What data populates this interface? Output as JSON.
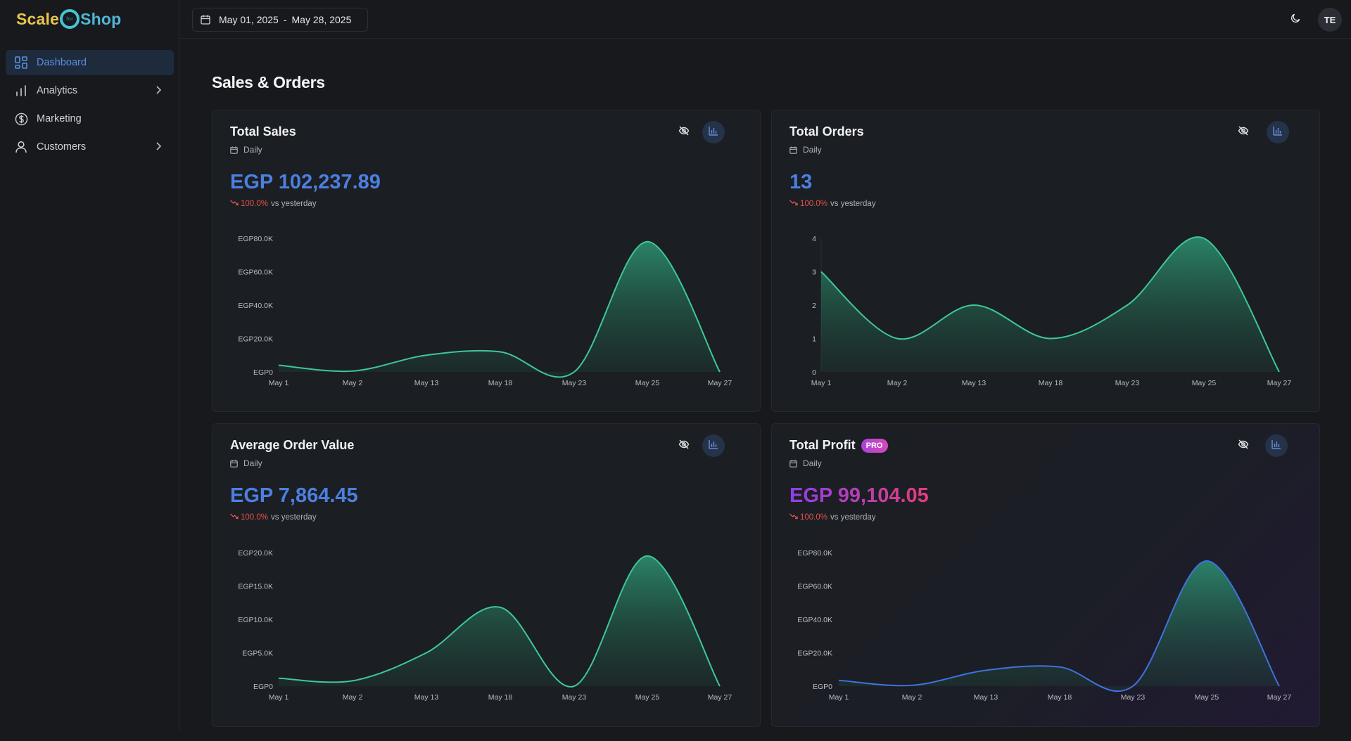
{
  "brand": {
    "part1": "Scale",
    "ring": "for",
    "part2": "Shop"
  },
  "sidebar": {
    "items": [
      {
        "label": "Dashboard",
        "icon": "dashboard-icon",
        "active": true,
        "chevron": false
      },
      {
        "label": "Analytics",
        "icon": "bar-chart-icon",
        "active": false,
        "chevron": true
      },
      {
        "label": "Marketing",
        "icon": "dollar-circle-icon",
        "active": false,
        "chevron": false
      },
      {
        "label": "Customers",
        "icon": "user-icon",
        "active": false,
        "chevron": true
      }
    ]
  },
  "topbar": {
    "date_from": "May 01, 2025",
    "date_sep": "-",
    "date_to": "May 28, 2025",
    "avatar": "TE"
  },
  "main": {
    "section_title": "Sales & Orders"
  },
  "cards": [
    {
      "title": "Total Sales",
      "period": "Daily",
      "value": "EGP 102,237.89",
      "change": "100.0%",
      "compare": "vs yesterday",
      "pro": false
    },
    {
      "title": "Total Orders",
      "period": "Daily",
      "value": "13",
      "change": "100.0%",
      "compare": "vs yesterday",
      "pro": false
    },
    {
      "title": "Average Order Value",
      "period": "Daily",
      "value": "EGP 7,864.45",
      "change": "100.0%",
      "compare": "vs yesterday",
      "pro": false
    },
    {
      "title": "Total Profit",
      "badge": "PRO",
      "period": "Daily",
      "value": "EGP 99,104.05",
      "change": "100.0%",
      "compare": "vs yesterday",
      "pro": true
    }
  ],
  "colors": {
    "accent": "#4c7fe0",
    "line_green": "#3ec79a",
    "line_blue": "#3d73e0",
    "negative": "#e45050"
  },
  "chart_data": [
    {
      "type": "area",
      "title": "Total Sales",
      "categories": [
        "May 1",
        "May 2",
        "May 13",
        "May 18",
        "May 23",
        "May 25",
        "May 27"
      ],
      "values": [
        4000,
        500,
        10000,
        12000,
        0,
        78000,
        0
      ],
      "ylim": [
        0,
        80000
      ],
      "yticks": [
        0,
        20000,
        40000,
        60000,
        80000
      ],
      "ytick_labels": [
        "EGP0",
        "EGP20.0K",
        "EGP40.0K",
        "EGP60.0K",
        "EGP80.0K"
      ],
      "color": "#3ec79a"
    },
    {
      "type": "area",
      "title": "Total Orders",
      "categories": [
        "May 1",
        "May 2",
        "May 13",
        "May 18",
        "May 23",
        "May 25",
        "May 27"
      ],
      "values": [
        3,
        1,
        2,
        1,
        2,
        4,
        0
      ],
      "ylim": [
        0,
        4
      ],
      "yticks": [
        0,
        1,
        2,
        3,
        4
      ],
      "ytick_labels": [
        "0",
        "1",
        "2",
        "3",
        "4"
      ],
      "color": "#3ec79a"
    },
    {
      "type": "area",
      "title": "Average Order Value",
      "categories": [
        "May 1",
        "May 2",
        "May 13",
        "May 18",
        "May 23",
        "May 25",
        "May 27"
      ],
      "values": [
        1200,
        800,
        5000,
        11800,
        0,
        19500,
        0
      ],
      "ylim": [
        0,
        20000
      ],
      "yticks": [
        0,
        5000,
        10000,
        15000,
        20000
      ],
      "ytick_labels": [
        "EGP0",
        "EGP5.0K",
        "EGP10.0K",
        "EGP15.0K",
        "EGP20.0K"
      ],
      "color": "#3ec79a"
    },
    {
      "type": "area",
      "title": "Total Profit",
      "categories": [
        "May 1",
        "May 2",
        "May 13",
        "May 18",
        "May 23",
        "May 25",
        "May 27"
      ],
      "values": [
        3500,
        500,
        9500,
        11500,
        0,
        75000,
        0
      ],
      "ylim": [
        0,
        80000
      ],
      "yticks": [
        0,
        20000,
        40000,
        60000,
        80000
      ],
      "ytick_labels": [
        "EGP0",
        "EGP20.0K",
        "EGP40.0K",
        "EGP60.0K",
        "EGP80.0K"
      ],
      "color": "#3d73e0"
    }
  ]
}
